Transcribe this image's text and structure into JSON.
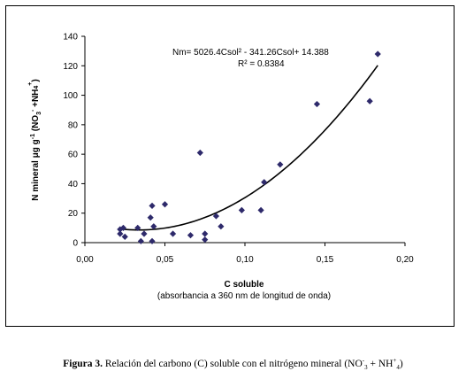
{
  "chart_data": {
    "type": "scatter",
    "x_label": "C soluble",
    "x_sublabel": "(absorbancia a 360 nm de longitud de onda)",
    "y_label_parts": [
      "N mineral ",
      "μ",
      "g g",
      "-1",
      " (NO",
      "3",
      "-",
      " +NH",
      "4",
      "+",
      ")"
    ],
    "xlim": [
      0.0,
      0.2
    ],
    "ylim": [
      0,
      140
    ],
    "x_ticks": [
      0.0,
      0.05,
      0.1,
      0.15,
      0.2
    ],
    "x_tick_labels": [
      "0,00",
      "0,05",
      "0,10",
      "0,15",
      "0,20"
    ],
    "y_ticks": [
      0,
      20,
      40,
      60,
      80,
      100,
      120,
      140
    ],
    "y_tick_labels": [
      "0",
      "20",
      "40",
      "60",
      "80",
      "100",
      "120",
      "140"
    ],
    "marker_color": "#2e2a6b",
    "line_color": "#000000",
    "points": [
      [
        0.022,
        9
      ],
      [
        0.022,
        6
      ],
      [
        0.024,
        10
      ],
      [
        0.025,
        4
      ],
      [
        0.033,
        10
      ],
      [
        0.035,
        1
      ],
      [
        0.037,
        6
      ],
      [
        0.041,
        17
      ],
      [
        0.042,
        25
      ],
      [
        0.042,
        1
      ],
      [
        0.043,
        11
      ],
      [
        0.05,
        26
      ],
      [
        0.055,
        6
      ],
      [
        0.066,
        5
      ],
      [
        0.072,
        61
      ],
      [
        0.075,
        2
      ],
      [
        0.075,
        6
      ],
      [
        0.082,
        18
      ],
      [
        0.085,
        11
      ],
      [
        0.098,
        22
      ],
      [
        0.11,
        22
      ],
      [
        0.112,
        41
      ],
      [
        0.122,
        53
      ],
      [
        0.145,
        94
      ],
      [
        0.178,
        96
      ],
      [
        0.183,
        128
      ]
    ],
    "trendline": {
      "a": 5026.4,
      "b": -341.26,
      "c": 14.388,
      "x_range": [
        0.022,
        0.183
      ],
      "equation": "Nm= 5026.4Csol² - 341.26Csol+ 14.388",
      "r2": "R² = 0.8384"
    }
  },
  "caption": {
    "figure_label": "Figura 3.",
    "text_before": " Relación del carbono (C) soluble con el nitrógeno mineral (NO",
    "sup1": "-",
    "sub1": "3",
    "text_mid": " + NH",
    "sup2": "+",
    "sub2": "4",
    "text_end": ")"
  }
}
